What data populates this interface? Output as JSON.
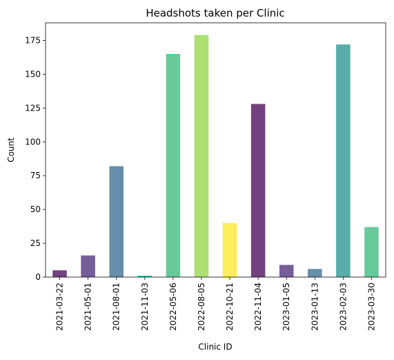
{
  "chart_data": {
    "type": "bar",
    "title": "Headshots taken per Clinic",
    "xlabel": "Clinic ID",
    "ylabel": "Count",
    "categories": [
      "2021-03-22",
      "2021-05-01",
      "2021-08-01",
      "2021-11-03",
      "2022-05-06",
      "2022-08-05",
      "2022-10-21",
      "2022-11-04",
      "2023-01-05",
      "2023-01-13",
      "2023-02-03",
      "2023-03-30"
    ],
    "values": [
      5,
      16,
      82,
      1,
      165,
      179,
      40,
      128,
      9,
      6,
      172,
      37
    ],
    "colors": [
      "#440154",
      "#482878",
      "#31688e",
      "#21918c",
      "#35b779",
      "#90d743",
      "#fde725",
      "#440154",
      "#482878",
      "#31688e",
      "#21918c",
      "#35b779"
    ],
    "bar_opacity": 0.75,
    "ylim": [
      0,
      188
    ],
    "yticks": [
      0,
      25,
      50,
      75,
      100,
      125,
      150,
      175
    ],
    "grid": false,
    "legend": "none"
  }
}
